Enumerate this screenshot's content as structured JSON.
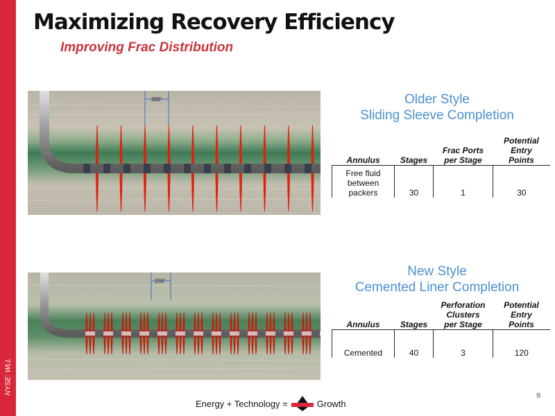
{
  "side_label": "NYSE: WLL",
  "title": "Maximizing Recovery Efficiency",
  "subtitle": "Improving Frac Distribution",
  "older": {
    "title_line1": "Older Style",
    "title_line2": "Sliding Sleeve Completion",
    "spacing_label": "300'",
    "headers": [
      "Annulus",
      "Stages",
      "Frac Ports per Stage",
      "Potential Entry Points"
    ],
    "header_lines": [
      [
        "Annulus"
      ],
      [
        "Stages"
      ],
      [
        "Frac Ports",
        "per Stage"
      ],
      [
        "Potential",
        "Entry",
        "Points"
      ]
    ],
    "row_lines": [
      [
        "Free fluid",
        "between",
        "packers"
      ],
      [
        "30"
      ],
      [
        "1"
      ],
      [
        "30"
      ]
    ]
  },
  "newer": {
    "title_line1": "New Style",
    "title_line2": "Cemented Liner Completion",
    "spacing_label": "250'",
    "header_lines": [
      [
        "Annulus"
      ],
      [
        "Stages"
      ],
      [
        "Perforation",
        "Clusters",
        "per Stage"
      ],
      [
        "Potential",
        "Entry",
        "Points"
      ]
    ],
    "row_lines": [
      [
        "Cemented"
      ],
      [
        "40"
      ],
      [
        "3"
      ],
      [
        "120"
      ]
    ]
  },
  "footer": {
    "left_text": "Energy + Technology =",
    "logo_text": "WHITING",
    "right_text": "Growth"
  },
  "page_number": "9",
  "colors": {
    "accent_red": "#d9263a",
    "subtitle_red": "#c9323b",
    "section_blue": "#4a90d0"
  }
}
